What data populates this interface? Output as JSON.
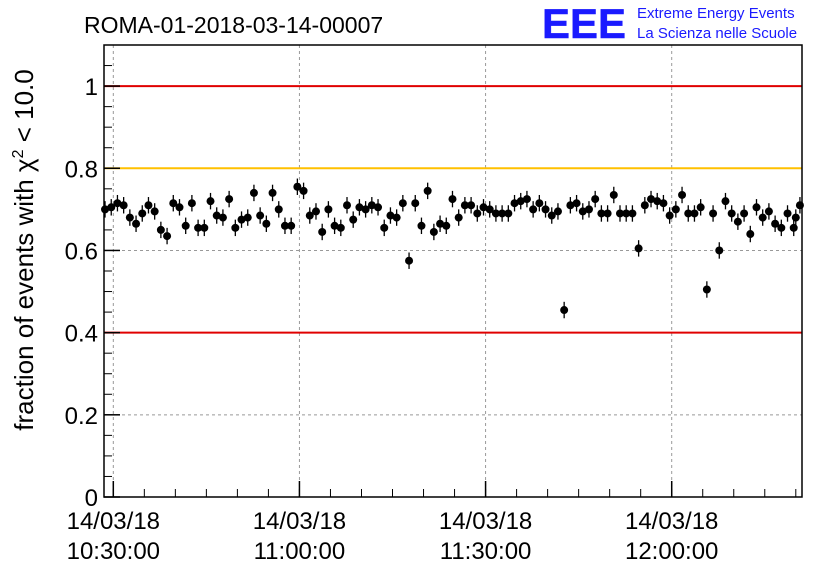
{
  "title": "ROMA-01-2018-03-14-00007",
  "logo": {
    "text": "EEE",
    "line1": "Extreme Energy Events",
    "line2": "La Scienza nelle Scuole",
    "color": "#1a1aff"
  },
  "chart_data": {
    "type": "scatter",
    "ylabel": "fraction of events with χ² < 10.0",
    "ylabel_parts": {
      "pre": "fraction of events with ",
      "sym": "χ",
      "sup": "2",
      "post": " < 10.0"
    },
    "ylim": [
      0,
      1.1
    ],
    "xlim": [
      "10:28:30",
      "12:21:00"
    ],
    "grid": true,
    "yticks": [
      {
        "value": 0,
        "label": "0"
      },
      {
        "value": 0.2,
        "label": "0.2"
      },
      {
        "value": 0.4,
        "label": "0.4"
      },
      {
        "value": 0.6,
        "label": "0.6"
      },
      {
        "value": 0.8,
        "label": "0.8"
      },
      {
        "value": 1.0,
        "label": "1"
      }
    ],
    "xticks": [
      {
        "time": "10:30:00",
        "date": "14/03/18",
        "label": "10:30:00"
      },
      {
        "time": "11:00:00",
        "date": "14/03/18",
        "label": "11:00:00"
      },
      {
        "time": "11:30:00",
        "date": "14/03/18",
        "label": "11:30:00"
      },
      {
        "time": "12:00:00",
        "date": "14/03/18",
        "label": "12:00:00"
      }
    ],
    "reference_lines": [
      {
        "y": 1.0,
        "color": "#e00000"
      },
      {
        "y": 0.8,
        "color": "#ffc000"
      },
      {
        "y": 0.4,
        "color": "#e00000"
      }
    ],
    "error_bar": 0.02,
    "points": [
      {
        "x": "10:28:40",
        "y": 0.7
      },
      {
        "x": "10:29:40",
        "y": 0.705
      },
      {
        "x": "10:30:40",
        "y": 0.715
      },
      {
        "x": "10:31:40",
        "y": 0.71
      },
      {
        "x": "10:32:40",
        "y": 0.68
      },
      {
        "x": "10:33:40",
        "y": 0.665
      },
      {
        "x": "10:34:40",
        "y": 0.69
      },
      {
        "x": "10:35:40",
        "y": 0.71
      },
      {
        "x": "10:36:40",
        "y": 0.695
      },
      {
        "x": "10:37:40",
        "y": 0.65
      },
      {
        "x": "10:38:40",
        "y": 0.635
      },
      {
        "x": "10:39:40",
        "y": 0.715
      },
      {
        "x": "10:40:40",
        "y": 0.705
      },
      {
        "x": "10:41:40",
        "y": 0.66
      },
      {
        "x": "10:42:40",
        "y": 0.715
      },
      {
        "x": "10:43:40",
        "y": 0.655
      },
      {
        "x": "10:44:40",
        "y": 0.655
      },
      {
        "x": "10:45:40",
        "y": 0.72
      },
      {
        "x": "10:46:40",
        "y": 0.685
      },
      {
        "x": "10:47:40",
        "y": 0.68
      },
      {
        "x": "10:48:40",
        "y": 0.725
      },
      {
        "x": "10:49:40",
        "y": 0.655
      },
      {
        "x": "10:50:40",
        "y": 0.675
      },
      {
        "x": "10:51:40",
        "y": 0.68
      },
      {
        "x": "10:52:40",
        "y": 0.74
      },
      {
        "x": "10:53:40",
        "y": 0.685
      },
      {
        "x": "10:54:40",
        "y": 0.665
      },
      {
        "x": "10:55:40",
        "y": 0.74
      },
      {
        "x": "10:56:40",
        "y": 0.7
      },
      {
        "x": "10:57:40",
        "y": 0.66
      },
      {
        "x": "10:58:40",
        "y": 0.66
      },
      {
        "x": "10:59:40",
        "y": 0.755
      },
      {
        "x": "11:00:40",
        "y": 0.745
      },
      {
        "x": "11:01:40",
        "y": 0.685
      },
      {
        "x": "11:02:40",
        "y": 0.695
      },
      {
        "x": "11:03:40",
        "y": 0.645
      },
      {
        "x": "11:04:40",
        "y": 0.7
      },
      {
        "x": "11:05:40",
        "y": 0.66
      },
      {
        "x": "11:06:40",
        "y": 0.655
      },
      {
        "x": "11:07:40",
        "y": 0.71
      },
      {
        "x": "11:08:40",
        "y": 0.675
      },
      {
        "x": "11:09:40",
        "y": 0.705
      },
      {
        "x": "11:10:40",
        "y": 0.7
      },
      {
        "x": "11:11:40",
        "y": 0.71
      },
      {
        "x": "11:12:40",
        "y": 0.705
      },
      {
        "x": "11:13:40",
        "y": 0.655
      },
      {
        "x": "11:14:40",
        "y": 0.685
      },
      {
        "x": "11:15:40",
        "y": 0.68
      },
      {
        "x": "11:16:40",
        "y": 0.715
      },
      {
        "x": "11:17:40",
        "y": 0.575
      },
      {
        "x": "11:18:40",
        "y": 0.715
      },
      {
        "x": "11:19:40",
        "y": 0.66
      },
      {
        "x": "11:20:40",
        "y": 0.745
      },
      {
        "x": "11:21:40",
        "y": 0.645
      },
      {
        "x": "11:22:40",
        "y": 0.665
      },
      {
        "x": "11:23:40",
        "y": 0.66
      },
      {
        "x": "11:24:40",
        "y": 0.725
      },
      {
        "x": "11:25:40",
        "y": 0.68
      },
      {
        "x": "11:26:40",
        "y": 0.71
      },
      {
        "x": "11:27:40",
        "y": 0.71
      },
      {
        "x": "11:28:40",
        "y": 0.69
      },
      {
        "x": "11:29:40",
        "y": 0.705
      },
      {
        "x": "11:30:40",
        "y": 0.7
      },
      {
        "x": "11:31:40",
        "y": 0.69
      },
      {
        "x": "11:32:40",
        "y": 0.69
      },
      {
        "x": "11:33:40",
        "y": 0.69
      },
      {
        "x": "11:34:40",
        "y": 0.715
      },
      {
        "x": "11:35:40",
        "y": 0.72
      },
      {
        "x": "11:36:40",
        "y": 0.725
      },
      {
        "x": "11:37:40",
        "y": 0.7
      },
      {
        "x": "11:38:40",
        "y": 0.715
      },
      {
        "x": "11:39:40",
        "y": 0.7
      },
      {
        "x": "11:40:40",
        "y": 0.685
      },
      {
        "x": "11:41:40",
        "y": 0.695
      },
      {
        "x": "11:42:40",
        "y": 0.455
      },
      {
        "x": "11:43:40",
        "y": 0.71
      },
      {
        "x": "11:44:40",
        "y": 0.715
      },
      {
        "x": "11:45:40",
        "y": 0.695
      },
      {
        "x": "11:46:40",
        "y": 0.7
      },
      {
        "x": "11:47:40",
        "y": 0.725
      },
      {
        "x": "11:48:40",
        "y": 0.69
      },
      {
        "x": "11:49:40",
        "y": 0.69
      },
      {
        "x": "11:50:40",
        "y": 0.735
      },
      {
        "x": "11:51:40",
        "y": 0.69
      },
      {
        "x": "11:52:40",
        "y": 0.69
      },
      {
        "x": "11:53:40",
        "y": 0.69
      },
      {
        "x": "11:54:40",
        "y": 0.605
      },
      {
        "x": "11:55:40",
        "y": 0.71
      },
      {
        "x": "11:56:40",
        "y": 0.725
      },
      {
        "x": "11:57:40",
        "y": 0.72
      },
      {
        "x": "11:58:40",
        "y": 0.715
      },
      {
        "x": "11:59:40",
        "y": 0.685
      },
      {
        "x": "12:00:40",
        "y": 0.7
      },
      {
        "x": "12:01:40",
        "y": 0.735
      },
      {
        "x": "12:02:40",
        "y": 0.69
      },
      {
        "x": "12:03:40",
        "y": 0.69
      },
      {
        "x": "12:04:40",
        "y": 0.705
      },
      {
        "x": "12:05:40",
        "y": 0.505
      },
      {
        "x": "12:06:40",
        "y": 0.69
      },
      {
        "x": "12:07:40",
        "y": 0.6
      },
      {
        "x": "12:08:40",
        "y": 0.72
      },
      {
        "x": "12:09:40",
        "y": 0.69
      },
      {
        "x": "12:10:40",
        "y": 0.67
      },
      {
        "x": "12:11:40",
        "y": 0.69
      },
      {
        "x": "12:12:40",
        "y": 0.64
      },
      {
        "x": "12:13:40",
        "y": 0.705
      },
      {
        "x": "12:14:40",
        "y": 0.68
      },
      {
        "x": "12:15:40",
        "y": 0.695
      },
      {
        "x": "12:16:40",
        "y": 0.665
      },
      {
        "x": "12:17:40",
        "y": 0.655
      },
      {
        "x": "12:18:40",
        "y": 0.69
      },
      {
        "x": "12:19:40",
        "y": 0.655
      },
      {
        "x": "12:20:00",
        "y": 0.68
      },
      {
        "x": "12:20:40",
        "y": 0.71
      }
    ]
  }
}
